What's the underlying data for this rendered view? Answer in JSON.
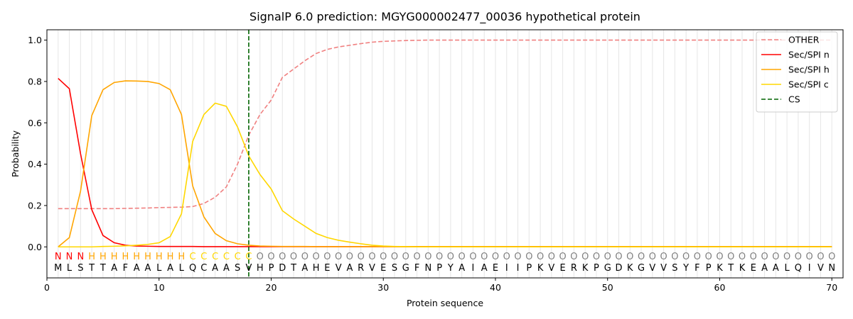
{
  "chart_data": {
    "type": "line",
    "title": "SignalP 6.0 prediction: MGYG000002477_00036 hypothetical protein",
    "xlabel": "Protein sequence",
    "ylabel": "Probability",
    "xlim": [
      0,
      71
    ],
    "ylim": [
      -0.15,
      1.05
    ],
    "xticks": [
      "0",
      "10",
      "20",
      "30",
      "40",
      "50",
      "60",
      "70"
    ],
    "yticks": [
      "0.0",
      "0.2",
      "0.4",
      "0.6",
      "0.8",
      "1.0"
    ],
    "grid": "vertical lines at each residue",
    "legend_position": "top-right",
    "sequence": [
      "M",
      "L",
      "S",
      "T",
      "T",
      "A",
      "F",
      "A",
      "A",
      "L",
      "A",
      "L",
      "Q",
      "C",
      "A",
      "A",
      "S",
      "V",
      "H",
      "P",
      "D",
      "T",
      "A",
      "H",
      "E",
      "V",
      "A",
      "R",
      "V",
      "E",
      "S",
      "G",
      "F",
      "N",
      "P",
      "Y",
      "A",
      "I",
      "A",
      "E",
      "I",
      "I",
      "P",
      "K",
      "V",
      "E",
      "R",
      "K",
      "P",
      "G",
      "D",
      "K",
      "G",
      "V",
      "V",
      "S",
      "Y",
      "F",
      "P",
      "K",
      "T",
      "K",
      "E",
      "A",
      "A",
      "L",
      "Q",
      "I",
      "V",
      "N"
    ],
    "labels": [
      "N",
      "N",
      "N",
      "H",
      "H",
      "H",
      "H",
      "H",
      "H",
      "H",
      "H",
      "H",
      "C",
      "C",
      "C",
      "C",
      "C",
      "C",
      "O",
      "O",
      "O",
      "O",
      "O",
      "O",
      "O",
      "O",
      "O",
      "O",
      "O",
      "O",
      "O",
      "O",
      "O",
      "O",
      "O",
      "O",
      "O",
      "O",
      "O",
      "O",
      "O",
      "O",
      "O",
      "O",
      "O",
      "O",
      "O",
      "O",
      "O",
      "O",
      "O",
      "O",
      "O",
      "O",
      "O",
      "O",
      "O",
      "O",
      "O",
      "O",
      "O",
      "O",
      "O",
      "O",
      "O",
      "O",
      "O",
      "O",
      "O",
      "O"
    ],
    "label_colors": {
      "N": "#ff0000",
      "H": "#ffa500",
      "C": "#ffd700",
      "O": "#808080"
    },
    "cleavage_site": 18,
    "series": [
      {
        "name": "OTHER",
        "color": "#f08080",
        "dash": true,
        "values": [
          0.185,
          0.185,
          0.185,
          0.185,
          0.185,
          0.185,
          0.186,
          0.187,
          0.188,
          0.19,
          0.191,
          0.192,
          0.195,
          0.21,
          0.24,
          0.29,
          0.4,
          0.54,
          0.64,
          0.71,
          0.82,
          0.86,
          0.9,
          0.935,
          0.955,
          0.967,
          0.975,
          0.983,
          0.99,
          0.994,
          0.996,
          0.998,
          0.999,
          1,
          1,
          1,
          1,
          1,
          1,
          1,
          1,
          1,
          1,
          1,
          1,
          1,
          1,
          1,
          1,
          1,
          1,
          1,
          1,
          1,
          1,
          1,
          1,
          1,
          1,
          1,
          1,
          1,
          1,
          1,
          1,
          1,
          1,
          1,
          1,
          1
        ]
      },
      {
        "name": "Sec/SPI n",
        "color": "#ff0000",
        "dash": false,
        "values": [
          0.815,
          0.765,
          0.45,
          0.18,
          0.055,
          0.02,
          0.008,
          0.004,
          0.003,
          0.002,
          0.002,
          0.002,
          0.002,
          0.001,
          0.001,
          0.001,
          0.001,
          0.001,
          0.001,
          0.001,
          0.001,
          0.001,
          0.001,
          0.001,
          0.001,
          0.001,
          0.001,
          0.001,
          0.001,
          0.001,
          0.001,
          0.001,
          0.001,
          0.001,
          0.001,
          0.001,
          0.001,
          0.001,
          0.001,
          0.001,
          0.001,
          0.001,
          0.001,
          0.001,
          0.001,
          0.001,
          0.001,
          0.001,
          0.001,
          0.001,
          0.001,
          0.001,
          0.001,
          0.001,
          0.001,
          0.001,
          0.001,
          0.001,
          0.001,
          0.001,
          0.001,
          0.001,
          0.001,
          0.001,
          0.001,
          0.001,
          0.001,
          0.001,
          0.001,
          0.001
        ]
      },
      {
        "name": "Sec/SPI h",
        "color": "#ffa500",
        "dash": false,
        "values": [
          0.0,
          0.045,
          0.27,
          0.635,
          0.76,
          0.795,
          0.803,
          0.802,
          0.8,
          0.79,
          0.76,
          0.64,
          0.295,
          0.145,
          0.065,
          0.03,
          0.015,
          0.008,
          0.004,
          0.003,
          0.002,
          0.002,
          0.002,
          0.001,
          0.001,
          0.001,
          0.001,
          0.001,
          0.001,
          0.001,
          0.001,
          0.001,
          0.001,
          0.001,
          0.001,
          0.001,
          0.001,
          0.001,
          0.001,
          0.001,
          0.001,
          0.001,
          0.001,
          0.001,
          0.001,
          0.001,
          0.001,
          0.001,
          0.001,
          0.001,
          0.001,
          0.001,
          0.001,
          0.001,
          0.001,
          0.001,
          0.001,
          0.001,
          0.001,
          0.001,
          0.001,
          0.001,
          0.001,
          0.001,
          0.001,
          0.001,
          0.001,
          0.001,
          0.001,
          0.001
        ]
      },
      {
        "name": "Sec/SPI c",
        "color": "#ffd700",
        "dash": false,
        "values": [
          0.0,
          0.0,
          0.0,
          0.0,
          0.002,
          0.003,
          0.005,
          0.008,
          0.012,
          0.02,
          0.05,
          0.16,
          0.51,
          0.64,
          0.695,
          0.68,
          0.58,
          0.44,
          0.35,
          0.28,
          0.175,
          0.135,
          0.1,
          0.065,
          0.045,
          0.032,
          0.023,
          0.015,
          0.008,
          0.004,
          0.002,
          0.001,
          0.0,
          0.0,
          0.0,
          0.0,
          0.0,
          0.0,
          0.0,
          0.0,
          0.0,
          0.0,
          0.0,
          0.0,
          0.0,
          0.0,
          0.0,
          0.0,
          0.0,
          0.0,
          0.0,
          0.0,
          0.0,
          0.0,
          0.0,
          0.0,
          0.0,
          0.0,
          0.0,
          0.0,
          0.0,
          0.0,
          0.0,
          0.0,
          0.0,
          0.0,
          0.0,
          0.0,
          0.0,
          0.0
        ]
      }
    ],
    "legend": [
      {
        "name": "OTHER",
        "color": "#f08080",
        "dash": true
      },
      {
        "name": "Sec/SPI n",
        "color": "#ff0000",
        "dash": false
      },
      {
        "name": "Sec/SPI h",
        "color": "#ffa500",
        "dash": false
      },
      {
        "name": "Sec/SPI c",
        "color": "#ffd700",
        "dash": false
      },
      {
        "name": "CS",
        "color": "#006400",
        "dash": true
      }
    ]
  }
}
